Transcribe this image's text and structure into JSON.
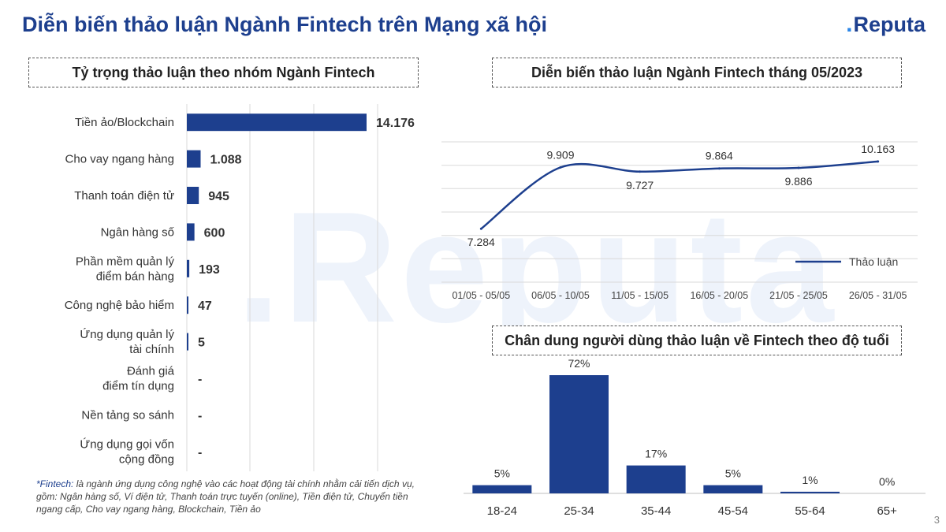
{
  "page": {
    "title": "Diễn biến thảo luận Ngành Fintech trên Mạng xã hội",
    "logo": "Reputa",
    "logo_dot": ".",
    "watermark": ".Reputa",
    "page_number": "3",
    "footnote_key": "*Fintech:",
    "footnote": "là ngành ứng dụng công nghệ vào các hoạt động tài chính nhằm cải tiến dịch vụ, gồm: Ngân hàng số, Ví điện tử, Thanh toán trực tuyến (online), Tiền điện tử, Chuyển tiền ngang cấp, Cho vay ngang hàng, Blockchain, Tiền ảo"
  },
  "chart_data": [
    {
      "type": "bar",
      "orientation": "horizontal",
      "title": "Tỷ trọng thảo luận theo nhóm Ngành Fintech",
      "categories": [
        "Tiền ảo/Blockchain",
        "Cho vay ngang hàng",
        "Thanh toán điện tử",
        "Ngân hàng số",
        "Phần mềm quản lý điểm bán hàng",
        "Công nghệ bảo hiểm",
        "Ứng dụng quản lý tài chính",
        "Đánh giá điểm tín dụng",
        "Nền tảng so sánh",
        "Ứng dụng gọi vốn cộng đồng"
      ],
      "category_lines": [
        [
          "Tiền ảo/Blockchain"
        ],
        [
          "Cho vay ngang hàng"
        ],
        [
          "Thanh toán điện tử"
        ],
        [
          "Ngân hàng số"
        ],
        [
          "Phần mềm quản lý",
          "điểm bán hàng"
        ],
        [
          "Công nghệ bảo hiểm"
        ],
        [
          "Ứng dụng quản lý",
          "tài chính"
        ],
        [
          "Đánh giá",
          "điểm tín dụng"
        ],
        [
          "Nền tảng so sánh"
        ],
        [
          "Ứng dụng gọi vốn",
          "cộng đồng"
        ]
      ],
      "values": [
        14176,
        1088,
        945,
        600,
        193,
        47,
        5,
        0,
        0,
        0
      ],
      "value_labels": [
        "14.176",
        "1.088",
        "945",
        "600",
        "193",
        "47",
        "5",
        "-",
        "-",
        "-"
      ],
      "xlim": [
        0,
        14176
      ],
      "color": "#1d3f8e",
      "grid": true
    },
    {
      "type": "line",
      "title": "Diễn biến thảo luận Ngành Fintech tháng 05/2023",
      "x": [
        "01/05 - 05/05",
        "06/05 - 10/05",
        "11/05 - 15/05",
        "16/05 - 20/05",
        "21/05 - 25/05",
        "26/05 - 31/05"
      ],
      "series": [
        {
          "name": "Thảo luận",
          "values": [
            7284,
            9909,
            9727,
            9864,
            9886,
            10163
          ],
          "labels": [
            "7.284",
            "9.909",
            "9.727",
            "9.864",
            "9.886",
            "10.163"
          ]
        }
      ],
      "legend": "bottom-right",
      "color": "#1d3f8e",
      "grid": true
    },
    {
      "type": "bar",
      "title": "Chân dung người dùng thảo luận về Fintech theo độ tuổi",
      "categories": [
        "18-24",
        "25-34",
        "35-44",
        "45-54",
        "55-64",
        "65+"
      ],
      "values": [
        5,
        72,
        17,
        5,
        1,
        0
      ],
      "value_labels": [
        "5%",
        "72%",
        "17%",
        "5%",
        "1%",
        "0%"
      ],
      "color": "#1d3f8e",
      "grid": false
    }
  ]
}
